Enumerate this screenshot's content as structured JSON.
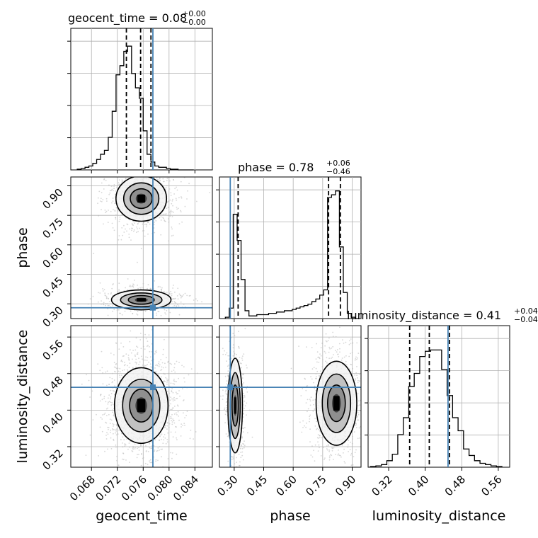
{
  "chart_data": {
    "type": "corner",
    "parameters": [
      "geocent_time",
      "phase",
      "luminosity_distance"
    ],
    "truths": {
      "geocent_time": 0.0775,
      "phase": 0.28,
      "luminosity_distance": 0.45
    },
    "ranges": {
      "geocent_time": [
        0.0648,
        0.0867
      ],
      "phase": [
        0.225,
        0.945
      ],
      "luminosity_distance": [
        0.275,
        0.585
      ]
    },
    "ticks": {
      "geocent_time": [
        "0.068",
        "0.072",
        "0.076",
        "0.080",
        "0.084"
      ],
      "phase": [
        "0.30",
        "0.45",
        "0.60",
        "0.75",
        "0.90"
      ],
      "luminosity_distance": [
        "0.32",
        "0.40",
        "0.48",
        "0.56"
      ]
    },
    "titles": [
      {
        "param": "geocent_time",
        "label": "geocent_time = 0.08",
        "plus": "+0.00",
        "minus": "−0.00"
      },
      {
        "param": "phase",
        "label": "phase = 0.78",
        "plus": "+0.06",
        "minus": "−0.46"
      },
      {
        "param": "luminosity_distance",
        "label": "luminosity_distance = 0.41",
        "plus": "+0.04",
        "minus": "−0.04"
      }
    ],
    "quantiles": {
      "geocent_time": [
        0.0734,
        0.0756,
        0.0772
      ],
      "phase": [
        0.32,
        0.78,
        0.84
      ],
      "luminosity_distance": [
        0.366,
        0.409,
        0.453
      ]
    },
    "histograms": {
      "geocent_time": {
        "edges": [
          0.0658,
          0.0664,
          0.067,
          0.0676,
          0.0682,
          0.0688,
          0.0694,
          0.07,
          0.0706,
          0.0712,
          0.0718,
          0.0724,
          0.073,
          0.0736,
          0.0742,
          0.0748,
          0.0754,
          0.076,
          0.0766,
          0.0772,
          0.0778,
          0.0784,
          0.079,
          0.0796,
          0.0802,
          0.0808,
          0.0814,
          0.082,
          0.0826,
          0.0832,
          0.0838
        ],
        "counts": [
          0.005,
          0.01,
          0.02,
          0.03,
          0.05,
          0.08,
          0.12,
          0.15,
          0.25,
          0.45,
          0.73,
          0.8,
          0.91,
          0.95,
          0.74,
          0.63,
          0.55,
          0.3,
          0.12,
          0.06,
          0.03,
          0.02,
          0.02,
          0.01,
          0.005,
          0.005,
          0.0,
          0.0,
          0.0,
          0.0
        ]
      },
      "phase": {
        "edges": [
          0.255,
          0.275,
          0.295,
          0.315,
          0.335,
          0.355,
          0.375,
          0.395,
          0.415,
          0.435,
          0.455,
          0.475,
          0.495,
          0.515,
          0.535,
          0.555,
          0.575,
          0.595,
          0.615,
          0.635,
          0.655,
          0.675,
          0.695,
          0.715,
          0.735,
          0.755,
          0.775,
          0.795,
          0.815,
          0.835,
          0.855,
          0.875,
          0.895,
          0.915,
          0.935
        ],
        "counts": [
          0.01,
          0.08,
          0.8,
          0.6,
          0.3,
          0.06,
          0.02,
          0.02,
          0.03,
          0.03,
          0.03,
          0.04,
          0.04,
          0.05,
          0.05,
          0.06,
          0.06,
          0.07,
          0.08,
          0.09,
          0.1,
          0.11,
          0.13,
          0.15,
          0.18,
          0.22,
          0.93,
          0.95,
          0.98,
          0.55,
          0.2,
          0.04,
          0.01,
          0.0
        ]
      },
      "luminosity_distance": {
        "edges": [
          0.28,
          0.292,
          0.304,
          0.316,
          0.328,
          0.34,
          0.352,
          0.364,
          0.376,
          0.388,
          0.4,
          0.412,
          0.424,
          0.436,
          0.448,
          0.46,
          0.472,
          0.484,
          0.496,
          0.508,
          0.52,
          0.532,
          0.544,
          0.556,
          0.568
        ],
        "counts": [
          0.005,
          0.01,
          0.02,
          0.05,
          0.1,
          0.25,
          0.38,
          0.62,
          0.72,
          0.85,
          0.89,
          0.9,
          0.9,
          0.75,
          0.55,
          0.38,
          0.28,
          0.14,
          0.09,
          0.05,
          0.03,
          0.02,
          0.01,
          0.005
        ]
      }
    },
    "modes": [
      {
        "pair": [
          "geocent_time",
          "phase"
        ],
        "center": [
          0.0757,
          0.835
        ],
        "sd": [
          0.0017,
          0.05
        ],
        "weight": 0.65
      },
      {
        "pair": [
          "geocent_time",
          "phase"
        ],
        "center": [
          0.0757,
          0.32
        ],
        "sd": [
          0.002,
          0.022
        ],
        "weight": 0.35
      },
      {
        "pair": [
          "geocent_time",
          "luminosity_distance"
        ],
        "center": [
          0.0757,
          0.41
        ],
        "sd": [
          0.0018,
          0.036
        ],
        "weight": 1.0
      },
      {
        "pair": [
          "phase",
          "luminosity_distance"
        ],
        "center": [
          0.305,
          0.41
        ],
        "sd": [
          0.016,
          0.045
        ],
        "weight": 0.35
      },
      {
        "pair": [
          "phase",
          "luminosity_distance"
        ],
        "center": [
          0.82,
          0.415
        ],
        "sd": [
          0.045,
          0.04
        ],
        "weight": 0.65
      }
    ],
    "colors": {
      "truth": "#4682b4",
      "grid": "#b0b0b0",
      "hist": "#000000",
      "samples": "#bdbdbd"
    }
  }
}
